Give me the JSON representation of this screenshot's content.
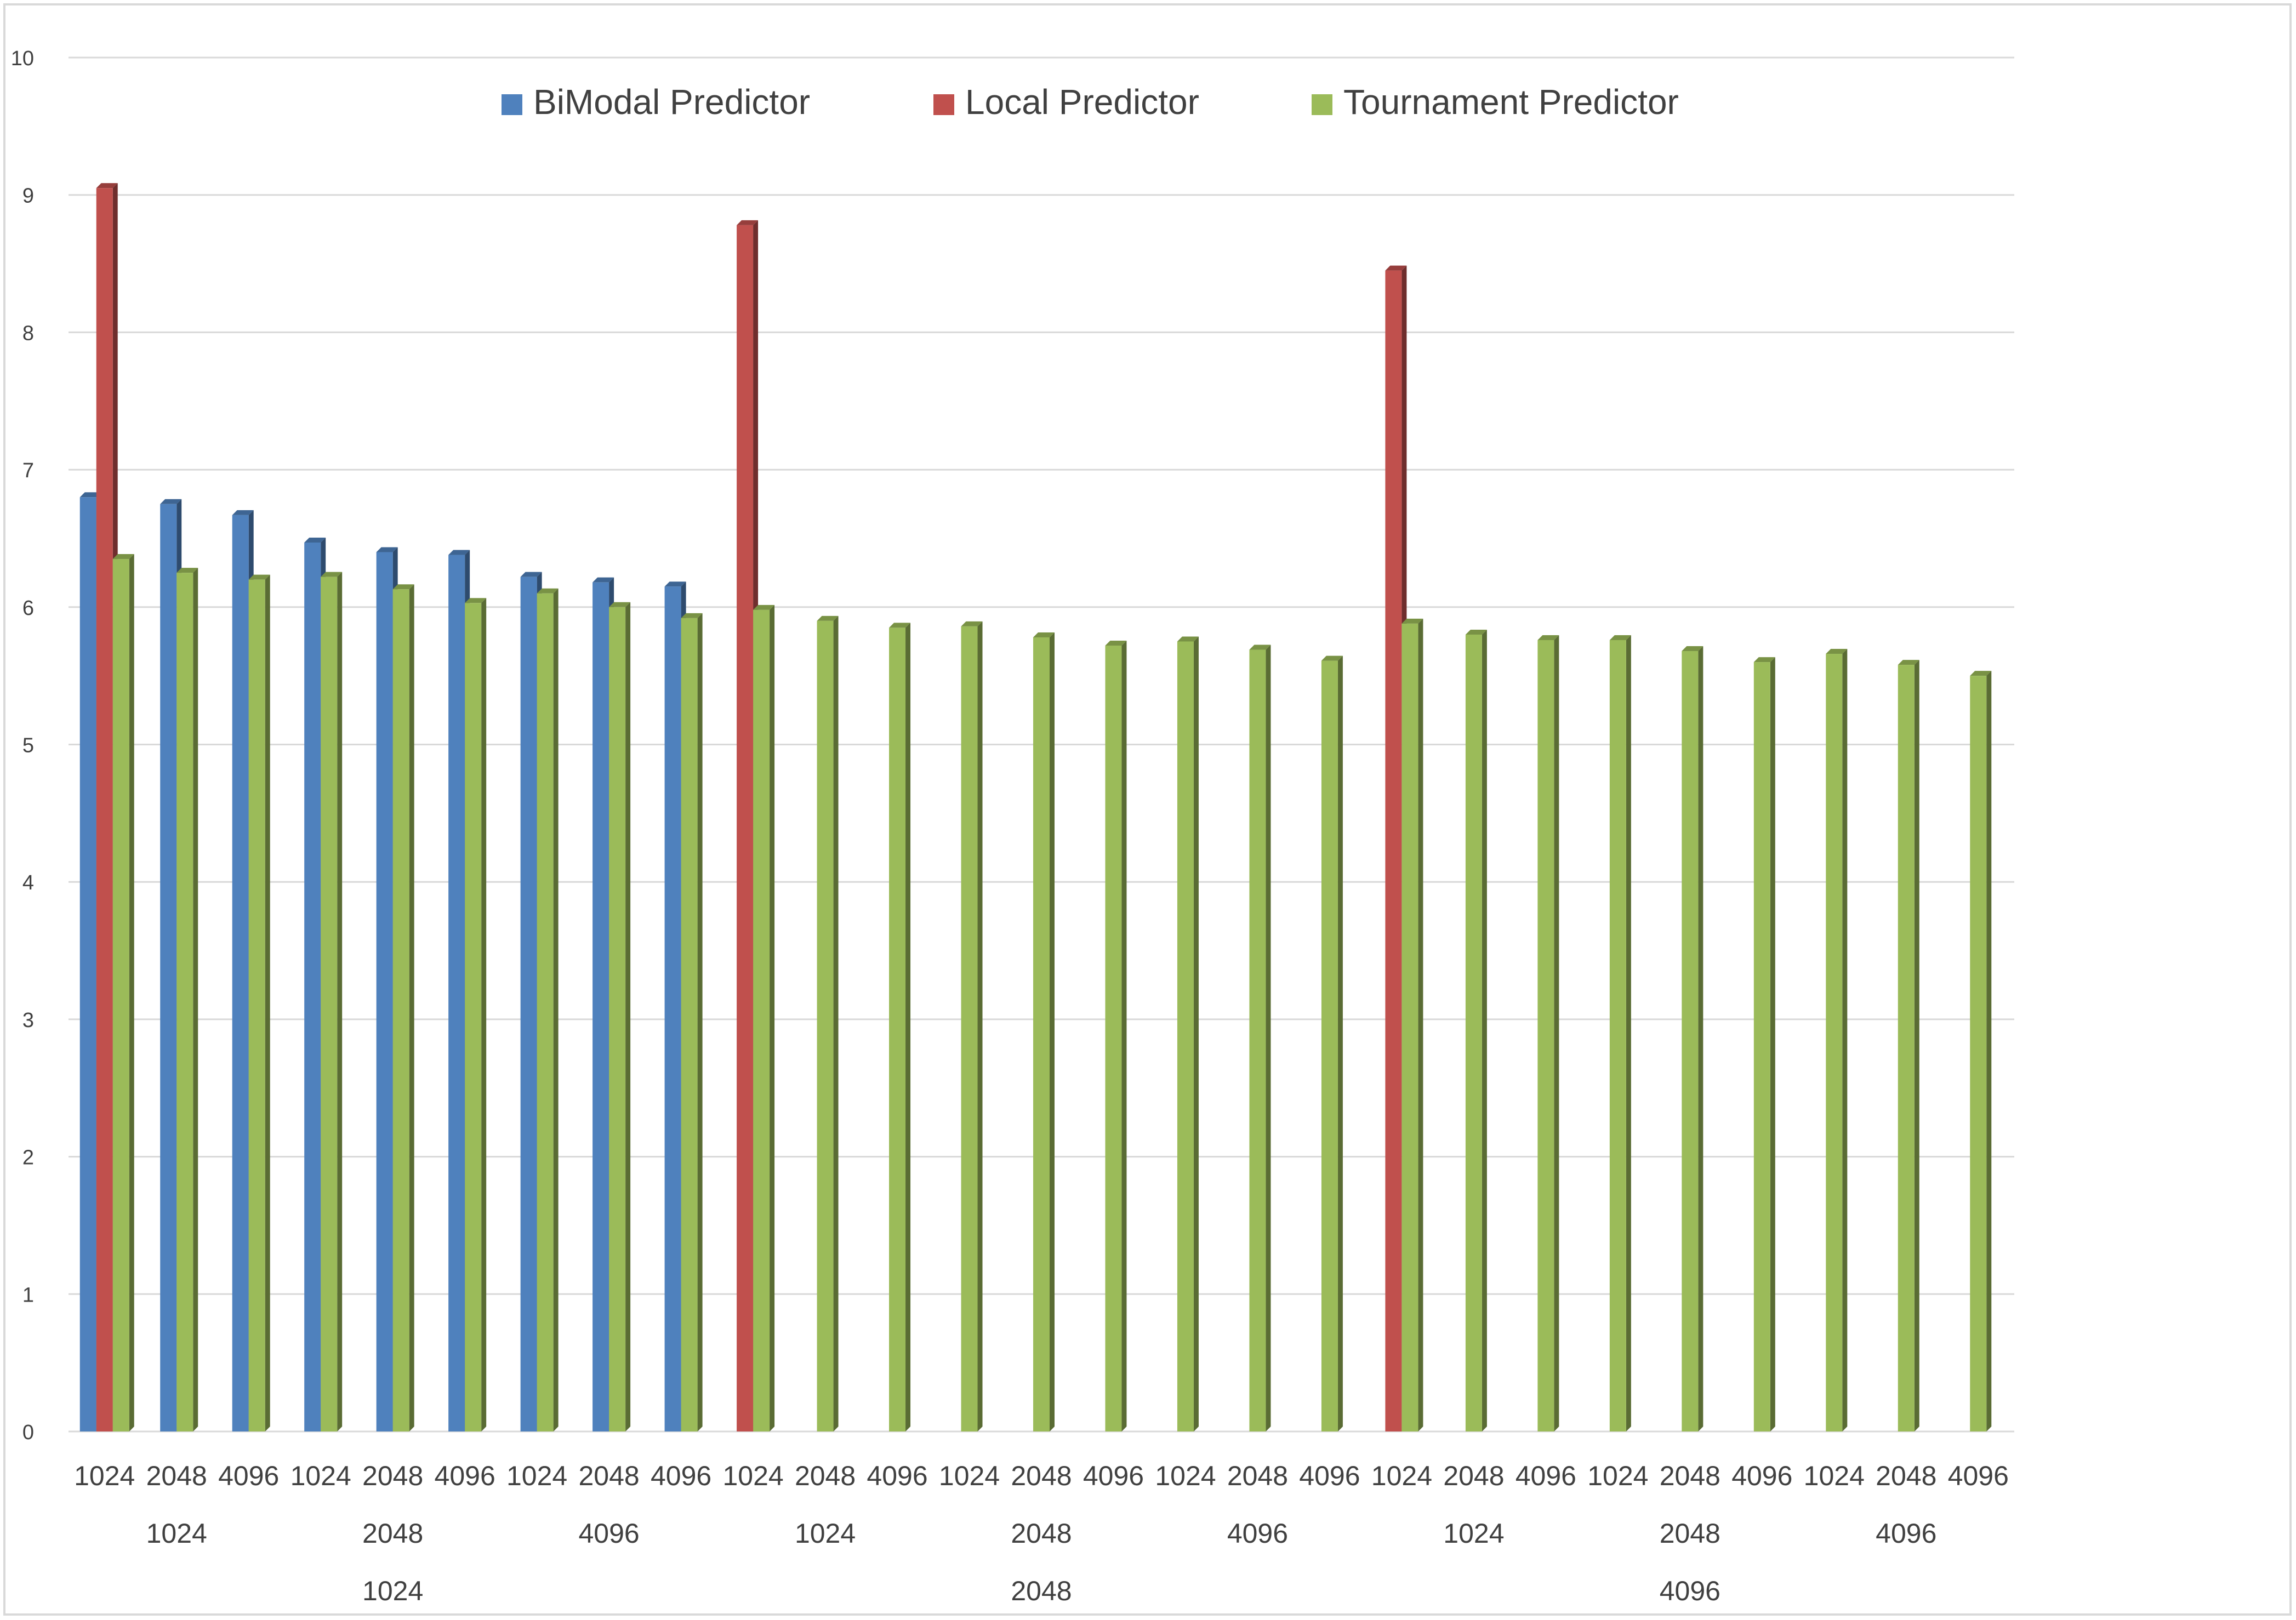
{
  "chart_data": {
    "type": "bar",
    "title": "",
    "xlabel": "",
    "ylabel": "",
    "ylim": [
      0,
      10
    ],
    "y_ticks": [
      "0",
      "1",
      "2",
      "3",
      "4",
      "5",
      "6",
      "7",
      "8",
      "9",
      "10"
    ],
    "grid": true,
    "legend_position": "top",
    "legend": [
      "BiModal Predictor",
      "Local Predictor",
      "Tournament Predictor"
    ],
    "x_level1": [
      "1024",
      "2048",
      "4096",
      "1024",
      "2048",
      "4096",
      "1024",
      "2048",
      "4096",
      "1024",
      "2048",
      "4096",
      "1024",
      "2048",
      "4096",
      "1024",
      "2048",
      "4096",
      "1024",
      "2048",
      "4096",
      "1024",
      "2048",
      "4096",
      "1024",
      "2048",
      "4096"
    ],
    "x_level2": [
      "1024",
      "2048",
      "4096",
      "1024",
      "2048",
      "4096",
      "1024",
      "2048",
      "4096"
    ],
    "x_level3": [
      "1024",
      "2048",
      "4096"
    ],
    "series": [
      {
        "name": "BiModal Predictor",
        "color": "#4f81bd",
        "values": [
          6.8,
          6.75,
          6.67,
          6.47,
          6.4,
          6.38,
          6.22,
          6.18,
          6.15,
          null,
          null,
          null,
          null,
          null,
          null,
          null,
          null,
          null,
          null,
          null,
          null,
          null,
          null,
          null,
          null,
          null,
          null
        ]
      },
      {
        "name": "Local Predictor",
        "color": "#c0504d",
        "values": [
          9.05,
          null,
          null,
          null,
          null,
          null,
          null,
          null,
          null,
          8.78,
          null,
          null,
          null,
          null,
          null,
          null,
          null,
          null,
          8.45,
          null,
          null,
          null,
          null,
          null,
          null,
          null,
          null
        ]
      },
      {
        "name": "Tournament Predictor",
        "color": "#9bbb59",
        "values": [
          6.35,
          6.25,
          6.2,
          6.22,
          6.13,
          6.03,
          6.1,
          6.0,
          5.92,
          5.98,
          5.9,
          5.85,
          5.86,
          5.78,
          5.72,
          5.75,
          5.69,
          5.61,
          5.88,
          5.8,
          5.76,
          5.76,
          5.68,
          5.6,
          5.66,
          5.58,
          5.5
        ]
      }
    ]
  }
}
